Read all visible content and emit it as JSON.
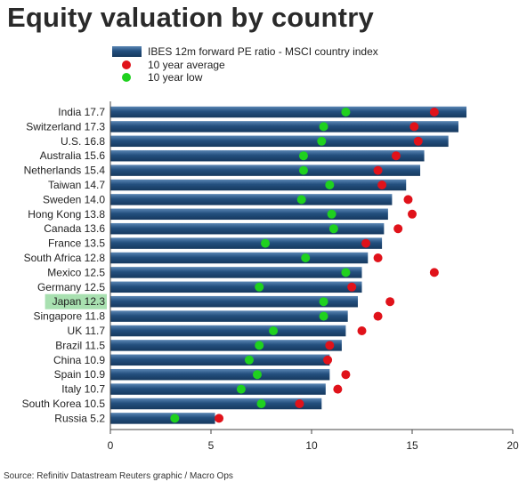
{
  "title": "Equity valuation by country",
  "source": "Source: Refinitiv Datastream Reuters graphic / Macro Ops",
  "colors": {
    "bar": "#1e4a78",
    "bar_highlight": "#5a86b4",
    "avg_dot": "#e0121a",
    "low_dot": "#1fd11f",
    "label_highlight_bg": "#a8e0b0"
  },
  "chart_data": {
    "type": "bar",
    "orientation": "horizontal",
    "legend": [
      {
        "label": "IBES 12m forward PE ratio - MSCI country index",
        "marker": "bar"
      },
      {
        "label": "10 year average",
        "marker": "red-dot"
      },
      {
        "label": "10 year low",
        "marker": "green-dot"
      }
    ],
    "legend_position": "top",
    "xlim": [
      0,
      20
    ],
    "xticks": [
      "0",
      "5",
      "10",
      "15",
      "20"
    ],
    "highlight_label": "Japan 12.3",
    "categories": [
      {
        "label": "India 17.7",
        "pe": 17.7,
        "avg": 16.1,
        "low": 11.7
      },
      {
        "label": "Switzerland 17.3",
        "pe": 17.3,
        "avg": 15.1,
        "low": 10.6
      },
      {
        "label": "U.S. 16.8",
        "pe": 16.8,
        "avg": 15.3,
        "low": 10.5
      },
      {
        "label": "Australia 15.6",
        "pe": 15.6,
        "avg": 14.2,
        "low": 9.6
      },
      {
        "label": "Netherlands 15.4",
        "pe": 15.4,
        "avg": 13.3,
        "low": 9.6
      },
      {
        "label": "Taiwan 14.7",
        "pe": 14.7,
        "avg": 13.5,
        "low": 10.9
      },
      {
        "label": "Sweden 14.0",
        "pe": 14.0,
        "avg": 14.8,
        "low": 9.5
      },
      {
        "label": "Hong Kong 13.8",
        "pe": 13.8,
        "avg": 15.0,
        "low": 11.0
      },
      {
        "label": "Canada 13.6",
        "pe": 13.6,
        "avg": 14.3,
        "low": 11.1
      },
      {
        "label": "France 13.5",
        "pe": 13.5,
        "avg": 12.7,
        "low": 7.7
      },
      {
        "label": "South Africa 12.8",
        "pe": 12.8,
        "avg": 13.3,
        "low": 9.7
      },
      {
        "label": "Mexico 12.5",
        "pe": 12.5,
        "avg": 16.1,
        "low": 11.7
      },
      {
        "label": "Germany 12.5",
        "pe": 12.5,
        "avg": 12.0,
        "low": 7.4
      },
      {
        "label": "Japan 12.3",
        "pe": 12.3,
        "avg": 13.9,
        "low": 10.6
      },
      {
        "label": "Singapore 11.8",
        "pe": 11.8,
        "avg": 13.3,
        "low": 10.6
      },
      {
        "label": "UK 11.7",
        "pe": 11.7,
        "avg": 12.5,
        "low": 8.1
      },
      {
        "label": "Brazil 11.5",
        "pe": 11.5,
        "avg": 10.9,
        "low": 7.4
      },
      {
        "label": "China 10.9",
        "pe": 10.9,
        "avg": 10.8,
        "low": 6.9
      },
      {
        "label": "Spain 10.9",
        "pe": 10.9,
        "avg": 11.7,
        "low": 7.3
      },
      {
        "label": "Italy 10.7",
        "pe": 10.7,
        "avg": 11.3,
        "low": 6.5
      },
      {
        "label": "South Korea 10.5",
        "pe": 10.5,
        "avg": 9.4,
        "low": 7.5
      },
      {
        "label": "Russia 5.2",
        "pe": 5.2,
        "avg": 5.4,
        "low": 3.2
      }
    ]
  }
}
